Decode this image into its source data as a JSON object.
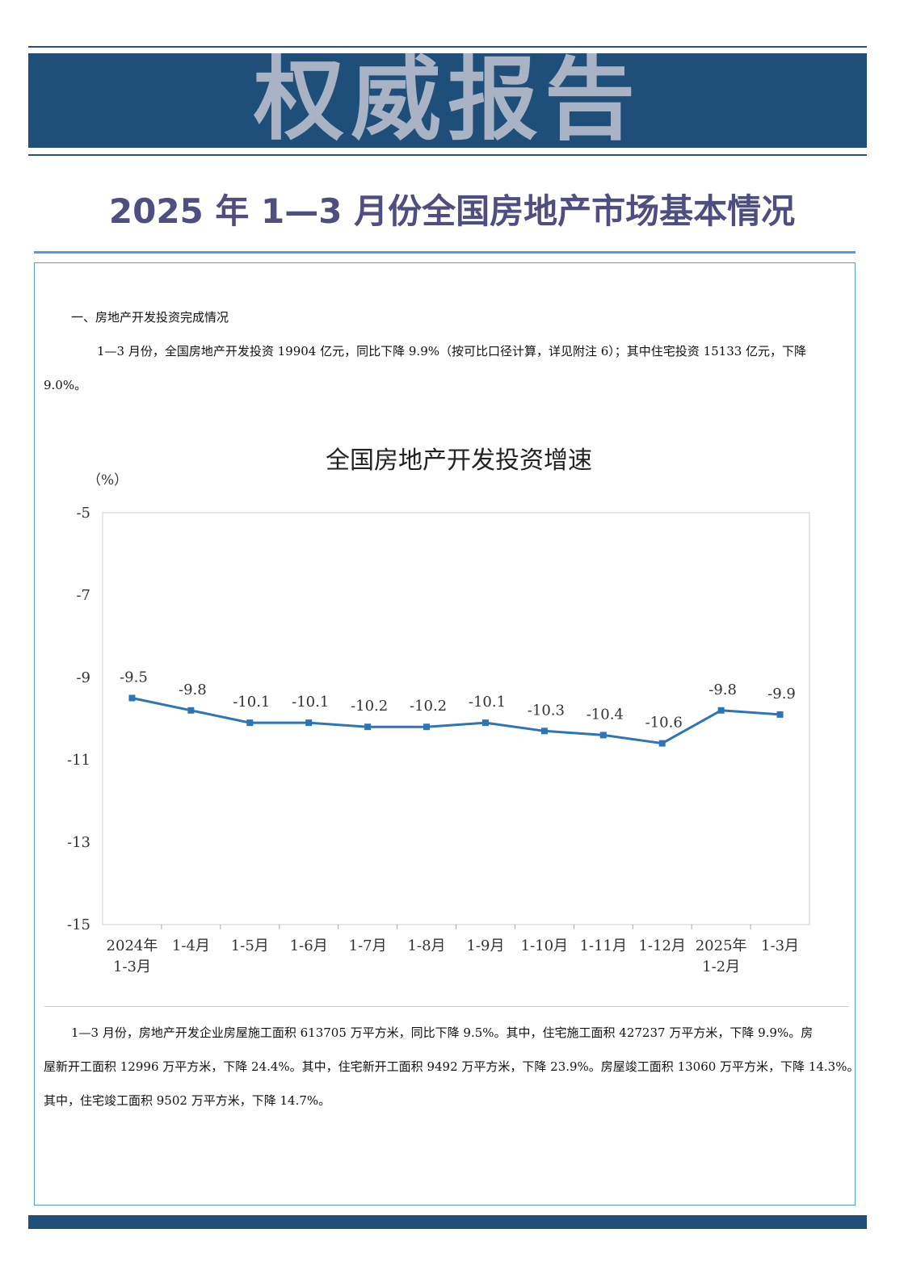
{
  "banner": {
    "text": "权威报告"
  },
  "title": "2025 年 1—3 月份全国房地产市场基本情况",
  "section1": {
    "heading": "一、房地产开发投资完成情况",
    "para1_line1": "1—3 月份，全国房地产开发投资 19904 亿元，同比下降 9.9%（按可比口径计算，详见附注 6）；其中住宅投资 15133 亿元，下降",
    "para1_line2": "9.0%。"
  },
  "para2": {
    "line1": "1—3 月份，房地产开发企业房屋施工面积 613705 万平方米，同比下降 9.5%。其中，住宅施工面积 427237 万平方米，下降 9.9%。房",
    "line2": "屋新开工面积 12996 万平方米，下降 24.4%。其中，住宅新开工面积 9492 万平方米，下降 23.9%。房屋竣工面积 13060 万平方米，下降 14.3%。",
    "line3": "其中，住宅竣工面积 9502 万平方米，下降 14.7%。"
  },
  "chart_data": {
    "type": "line",
    "title": "全国房地产开发投资增速",
    "ylabel": "（%）",
    "ylim": [
      -15,
      -5
    ],
    "yticks": [
      "-5",
      "-7",
      "-9",
      "-11",
      "-13",
      "-15"
    ],
    "categories": [
      [
        "2024年",
        "1-3月"
      ],
      [
        "1-4月"
      ],
      [
        "1-5月"
      ],
      [
        "1-6月"
      ],
      [
        "1-7月"
      ],
      [
        "1-8月"
      ],
      [
        "1-9月"
      ],
      [
        "1-10月"
      ],
      [
        "1-11月"
      ],
      [
        "1-12月"
      ],
      [
        "2025年",
        "1-2月"
      ],
      [
        "1-3月"
      ]
    ],
    "values": [
      -9.5,
      -9.8,
      -10.1,
      -10.1,
      -10.2,
      -10.2,
      -10.1,
      -10.3,
      -10.4,
      -10.6,
      -9.8,
      -9.9
    ],
    "labels": [
      "-9.5",
      "-9.8",
      "-10.1",
      "-10.1",
      "-10.2",
      "-10.2",
      "-10.1",
      "-10.3",
      "-10.4",
      "-10.6",
      "-9.8",
      "-9.9"
    ],
    "color": "#2e75b6",
    "grid": false
  }
}
